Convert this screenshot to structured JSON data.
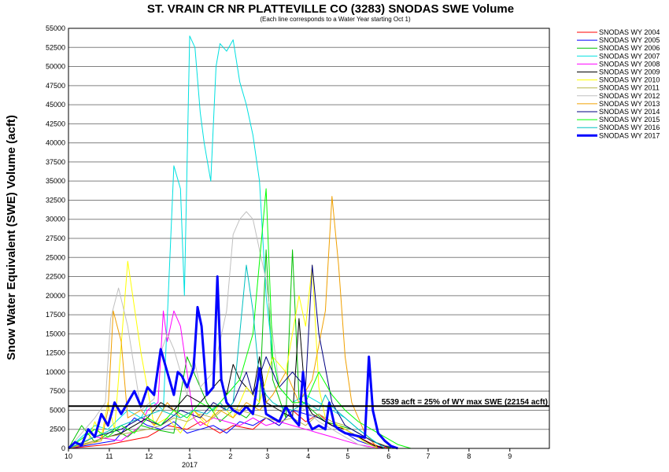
{
  "chart_data": {
    "type": "line",
    "title": "ST. VRAIN CR NR PLATTEVILLE CO (3283) SNODAS SWE Volume",
    "subtitle": "(Each line corresponds to a Water Year starting Oct 1)",
    "ylabel": "Snow Water Equivalent (SWE) Volume (acft)",
    "xlabel": "",
    "ylim": [
      0,
      55000
    ],
    "y_ticks": [
      0,
      2500,
      5000,
      7500,
      10000,
      12500,
      15000,
      17500,
      20000,
      22500,
      25000,
      27500,
      30000,
      32500,
      35000,
      37500,
      40000,
      42500,
      45000,
      47500,
      50000,
      52500,
      55000
    ],
    "y_tick_labels": [
      "0",
      "2500",
      "5000",
      "7500",
      "10000",
      "12500",
      "15000",
      "17500",
      "20000",
      "22500",
      "25000",
      "27500",
      "30000",
      "32500",
      "35000",
      "37500",
      "40000",
      "42500",
      "45000",
      "47500",
      "50000",
      "52500",
      "55000"
    ],
    "xlim": [
      0,
      365
    ],
    "x_ticks": [
      0,
      31,
      61,
      92,
      123,
      151,
      182,
      212,
      243,
      273,
      304,
      335
    ],
    "x_tick_labels": [
      "10",
      "11",
      "12",
      "1",
      "2",
      "3",
      "4",
      "5",
      "6",
      "7",
      "8",
      "9"
    ],
    "x_year_label": "2017",
    "x_year_label_day": 92,
    "grid": true,
    "legend_position": "right",
    "reference_line": {
      "y": 5539,
      "label": "5539 acft = 25% of WY max SWE (22154 acft)"
    },
    "series": [
      {
        "name": "SNODAS WY 2004",
        "color": "#ff0000",
        "width": 1,
        "x": [
          0,
          30,
          60,
          75,
          90,
          100,
          115,
          125,
          140,
          150,
          160,
          170,
          180,
          190,
          200,
          210,
          220,
          228,
          235,
          245,
          260
        ],
        "y": [
          0,
          500,
          1500,
          3000,
          2500,
          3500,
          2000,
          3000,
          2500,
          4000,
          3000,
          5000,
          3500,
          4500,
          3000,
          2500,
          1500,
          800,
          300,
          0,
          0
        ]
      },
      {
        "name": "SNODAS WY 2005",
        "color": "#0000ff",
        "width": 1,
        "x": [
          0,
          35,
          50,
          60,
          70,
          80,
          90,
          100,
          110,
          120,
          130,
          140,
          150,
          160,
          170,
          180,
          190,
          200,
          210,
          220,
          230,
          240,
          250
        ],
        "y": [
          0,
          1000,
          4000,
          3000,
          2500,
          3500,
          2000,
          2500,
          3000,
          2000,
          3500,
          3000,
          4000,
          3000,
          5000,
          4500,
          4000,
          3000,
          2000,
          1000,
          400,
          0,
          0
        ]
      },
      {
        "name": "SNODAS WY 2006",
        "color": "#00c000",
        "width": 1,
        "x": [
          0,
          10,
          20,
          35,
          45,
          55,
          65,
          80,
          90,
          105,
          115,
          125,
          135,
          145,
          150,
          155,
          165,
          170,
          175,
          185,
          195,
          205,
          215,
          225,
          235,
          245
        ],
        "y": [
          0,
          3000,
          800,
          2500,
          1500,
          3000,
          2500,
          2000,
          12000,
          6000,
          3500,
          5000,
          4000,
          6000,
          26000,
          9000,
          4000,
          26000,
          6500,
          5000,
          3500,
          3000,
          2500,
          1500,
          600,
          0
        ]
      },
      {
        "name": "SNODAS WY 2007",
        "color": "#00e0e0",
        "width": 1,
        "x": [
          0,
          20,
          30,
          45,
          55,
          60,
          65,
          72,
          80,
          85,
          88,
          92,
          96,
          100,
          103,
          108,
          112,
          115,
          120,
          125,
          130,
          135,
          140,
          145,
          150,
          155,
          160,
          170,
          180,
          190,
          200,
          210,
          220,
          230,
          240
        ],
        "y": [
          0,
          3000,
          2500,
          5000,
          4000,
          5500,
          6000,
          5000,
          37000,
          34000,
          20000,
          54000,
          52500,
          44000,
          40000,
          35000,
          50000,
          53000,
          52000,
          53500,
          48000,
          45000,
          41000,
          35000,
          20000,
          12000,
          8000,
          6000,
          7000,
          6000,
          5000,
          4000,
          2500,
          1200,
          0
        ]
      },
      {
        "name": "SNODAS WY 2008",
        "color": "#ff00ff",
        "width": 1,
        "x": [
          0,
          20,
          40,
          55,
          60,
          68,
          72,
          75,
          80,
          85,
          90,
          95,
          100,
          110,
          120,
          130,
          140,
          150,
          160,
          170,
          180,
          190,
          200,
          210,
          220,
          230,
          240
        ],
        "y": [
          0,
          1500,
          1000,
          3000,
          5000,
          6000,
          18000,
          14000,
          18000,
          16000,
          10000,
          4000,
          3000,
          4000,
          3500,
          3000,
          4000,
          3000,
          3500,
          3000,
          2500,
          2000,
          1500,
          1000,
          500,
          200,
          0
        ]
      },
      {
        "name": "SNODAS WY 2009",
        "color": "#000000",
        "width": 1,
        "x": [
          0,
          40,
          60,
          70,
          80,
          90,
          100,
          110,
          115,
          120,
          125,
          130,
          140,
          145,
          150,
          160,
          170,
          175,
          180,
          185,
          190,
          200,
          210,
          220,
          230,
          240
        ],
        "y": [
          0,
          2000,
          4000,
          6000,
          5000,
          7000,
          6000,
          8000,
          9000,
          7000,
          11000,
          9000,
          7000,
          12000,
          6000,
          5000,
          4000,
          17000,
          6000,
          4500,
          4000,
          3000,
          2500,
          1500,
          500,
          0
        ]
      },
      {
        "name": "SNODAS WY 2010",
        "color": "#ffff00",
        "width": 1,
        "x": [
          0,
          15,
          20,
          25,
          30,
          35,
          45,
          55,
          65,
          75,
          85,
          95,
          105,
          115,
          125,
          135,
          145,
          155,
          165,
          175,
          180,
          185,
          190,
          195,
          205,
          215,
          225,
          235
        ],
        "y": [
          0,
          1000,
          3500,
          1500,
          6000,
          2500,
          24500,
          12500,
          3000,
          4000,
          2000,
          5000,
          3000,
          6000,
          4000,
          8000,
          6000,
          12000,
          10000,
          20000,
          16000,
          24000,
          8000,
          4000,
          3000,
          2000,
          800,
          0
        ]
      },
      {
        "name": "SNODAS WY 2011",
        "color": "#b5b548",
        "width": 1,
        "x": [
          0,
          30,
          60,
          70,
          80,
          90,
          100,
          110,
          120,
          130,
          140,
          150,
          160,
          170,
          180,
          190,
          200,
          210,
          220,
          230,
          240,
          250
        ],
        "y": [
          0,
          1500,
          2500,
          3000,
          4000,
          3500,
          4500,
          4000,
          5500,
          5000,
          4500,
          4000,
          3500,
          4000,
          3000,
          4500,
          3500,
          3000,
          2000,
          1000,
          400,
          0
        ]
      },
      {
        "name": "SNODAS WY 2012",
        "color": "#c0c0c0",
        "width": 1,
        "x": [
          0,
          20,
          28,
          32,
          38,
          45,
          55,
          65,
          70,
          75,
          80,
          85,
          90,
          95,
          100,
          110,
          120,
          125,
          130,
          135,
          140,
          145,
          150,
          160,
          170,
          180,
          190,
          200,
          210,
          220,
          230
        ],
        "y": [
          0,
          4000,
          6000,
          17000,
          21000,
          16000,
          5000,
          6500,
          12500,
          15000,
          13000,
          10000,
          7000,
          12000,
          8000,
          10000,
          18000,
          28000,
          30000,
          31000,
          30000,
          26000,
          22000,
          8000,
          6000,
          5000,
          3500,
          2500,
          1500,
          500,
          0
        ]
      },
      {
        "name": "SNODAS WY 2013",
        "color": "#f0a000",
        "width": 1,
        "x": [
          0,
          25,
          30,
          34,
          40,
          45,
          55,
          65,
          75,
          85,
          95,
          105,
          115,
          125,
          135,
          145,
          155,
          165,
          175,
          185,
          195,
          200,
          205,
          210,
          215,
          225,
          235
        ],
        "y": [
          0,
          1000,
          5000,
          18000,
          14000,
          4000,
          5000,
          3000,
          6000,
          4000,
          5000,
          3500,
          5000,
          4000,
          6000,
          5000,
          7000,
          10000,
          6000,
          9000,
          18000,
          33000,
          24000,
          12000,
          6000,
          2000,
          0
        ]
      },
      {
        "name": "SNODAS WY 2014",
        "color": "#000080",
        "width": 1,
        "x": [
          0,
          20,
          40,
          55,
          70,
          85,
          100,
          110,
          120,
          125,
          130,
          135,
          140,
          150,
          160,
          170,
          180,
          185,
          190,
          200,
          210,
          220,
          230,
          240,
          250
        ],
        "y": [
          0,
          1500,
          2500,
          4000,
          3000,
          5000,
          4000,
          6000,
          5000,
          6000,
          8000,
          10000,
          7000,
          12000,
          8000,
          10000,
          8000,
          24000,
          15000,
          6000,
          3000,
          2000,
          1000,
          300,
          0
        ]
      },
      {
        "name": "SNODAS WY 2015",
        "color": "#00ff00",
        "width": 1,
        "x": [
          0,
          20,
          30,
          40,
          50,
          60,
          70,
          80,
          90,
          100,
          110,
          120,
          130,
          140,
          150,
          155,
          160,
          170,
          180,
          190,
          200,
          210,
          220,
          230,
          240,
          250,
          260
        ],
        "y": [
          0,
          2500,
          1500,
          3000,
          2000,
          4000,
          3000,
          5000,
          4000,
          6000,
          5000,
          7000,
          9000,
          15000,
          34000,
          12000,
          8000,
          6000,
          6000,
          10000,
          7000,
          5000,
          3500,
          2500,
          1500,
          500,
          0
        ]
      },
      {
        "name": "SNODAS WY 2016",
        "color": "#00c0c0",
        "width": 1,
        "x": [
          0,
          20,
          40,
          55,
          70,
          85,
          95,
          105,
          115,
          120,
          125,
          130,
          135,
          140,
          145,
          150,
          155,
          160,
          170,
          180,
          190,
          195,
          200,
          210,
          220,
          230,
          240
        ],
        "y": [
          0,
          1500,
          3000,
          4000,
          5000,
          4000,
          5000,
          4500,
          6000,
          5000,
          6000,
          15000,
          24000,
          18000,
          9000,
          7000,
          6000,
          5500,
          5000,
          6000,
          5000,
          7000,
          5500,
          4000,
          2500,
          1200,
          0
        ]
      },
      {
        "name": "SNODAS WY 2017",
        "color": "#0000ff",
        "width": 3,
        "x": [
          0,
          5,
          10,
          15,
          20,
          25,
          30,
          35,
          40,
          45,
          50,
          55,
          60,
          65,
          70,
          75,
          80,
          83,
          86,
          90,
          95,
          98,
          101,
          105,
          110,
          113,
          116,
          120,
          125,
          130,
          135,
          140,
          145,
          150,
          155,
          160,
          165,
          170,
          175,
          178,
          182,
          185,
          190,
          195,
          198,
          202,
          205,
          210,
          215,
          220,
          225,
          228,
          231,
          235,
          240,
          245,
          250
        ],
        "y": [
          0,
          800,
          400,
          2500,
          1500,
          4500,
          3000,
          6000,
          4500,
          6000,
          7500,
          5500,
          8000,
          7000,
          13000,
          10000,
          7000,
          10000,
          9500,
          8000,
          10500,
          18500,
          16000,
          7000,
          8000,
          22500,
          9000,
          6000,
          5000,
          4500,
          5500,
          4500,
          10500,
          4500,
          4000,
          3500,
          5500,
          4000,
          3000,
          10000,
          3500,
          2500,
          3000,
          2500,
          6000,
          3000,
          2500,
          2000,
          1800,
          1600,
          1400,
          12000,
          5000,
          2000,
          1000,
          300,
          0
        ]
      }
    ]
  }
}
